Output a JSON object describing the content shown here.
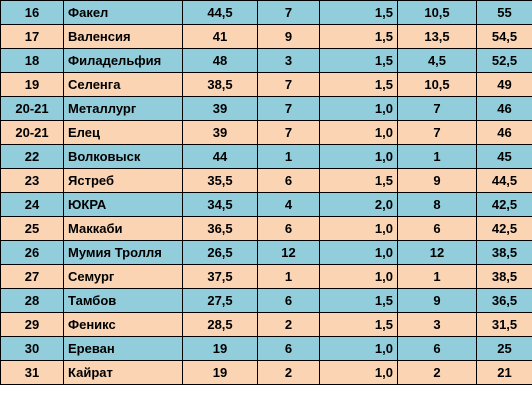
{
  "table": {
    "rows": [
      {
        "place": "16",
        "team": "Факел",
        "a": "44,5",
        "b": "7",
        "c": "1,5",
        "d": "10,5",
        "points": "55"
      },
      {
        "place": "17",
        "team": "Валенсия",
        "a": "41",
        "b": "9",
        "c": "1,5",
        "d": "13,5",
        "points": "54,5"
      },
      {
        "place": "18",
        "team": "Филадельфия",
        "a": "48",
        "b": "3",
        "c": "1,5",
        "d": "4,5",
        "points": "52,5"
      },
      {
        "place": "19",
        "team": "Селенга",
        "a": "38,5",
        "b": "7",
        "c": "1,5",
        "d": "10,5",
        "points": "49"
      },
      {
        "place": "20-21",
        "team": "Металлург",
        "a": "39",
        "b": "7",
        "c": "1,0",
        "d": "7",
        "points": "46"
      },
      {
        "place": "20-21",
        "team": "Елец",
        "a": "39",
        "b": "7",
        "c": "1,0",
        "d": "7",
        "points": "46"
      },
      {
        "place": "22",
        "team": "Волковыск",
        "a": "44",
        "b": "1",
        "c": "1,0",
        "d": "1",
        "points": "45"
      },
      {
        "place": "23",
        "team": "Ястреб",
        "a": "35,5",
        "b": "6",
        "c": "1,5",
        "d": "9",
        "points": "44,5"
      },
      {
        "place": "24",
        "team": "ЮКРА",
        "a": "34,5",
        "b": "4",
        "c": "2,0",
        "d": "8",
        "points": "42,5"
      },
      {
        "place": "25",
        "team": "Маккаби",
        "a": "36,5",
        "b": "6",
        "c": "1,0",
        "d": "6",
        "points": "42,5"
      },
      {
        "place": "26",
        "team": "Мумия Тролля",
        "a": "26,5",
        "b": "12",
        "c": "1,0",
        "d": "12",
        "points": "38,5"
      },
      {
        "place": "27",
        "team": "Семург",
        "a": "37,5",
        "b": "1",
        "c": "1,0",
        "d": "1",
        "points": "38,5"
      },
      {
        "place": "28",
        "team": "Тамбов",
        "a": "27,5",
        "b": "6",
        "c": "1,5",
        "d": "9",
        "points": "36,5"
      },
      {
        "place": "29",
        "team": "Феникс",
        "a": "28,5",
        "b": "2",
        "c": "1,5",
        "d": "3",
        "points": "31,5"
      },
      {
        "place": "30",
        "team": "Ереван",
        "a": "19",
        "b": "6",
        "c": "1,0",
        "d": "6",
        "points": "25"
      },
      {
        "place": "31",
        "team": "Кайрат",
        "a": "19",
        "b": "2",
        "c": "1,0",
        "d": "2",
        "points": "21"
      }
    ],
    "colors": {
      "row_blue": "#92cddc",
      "row_orange": "#fbd4b4",
      "border": "#000000"
    }
  }
}
